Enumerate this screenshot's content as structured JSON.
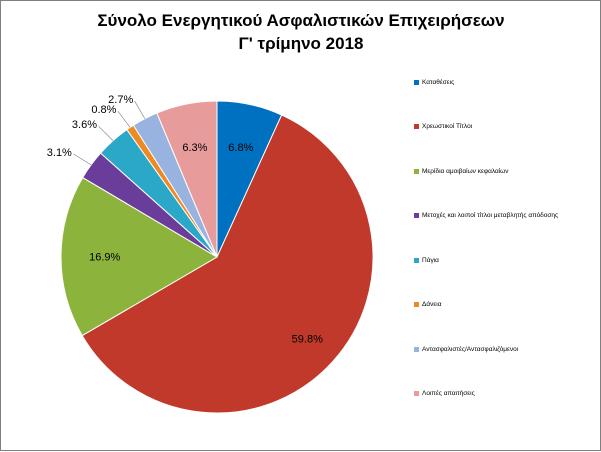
{
  "title_lines": [
    "Σύνολο Ενεργητικού Ασφαλιστικών Επιχειρήσεων",
    "Γ' τρίμηνο 2018"
  ],
  "chart_data": {
    "type": "pie",
    "title": "Σύνολο Ενεργητικού Ασφαλιστικών Επιχειρήσεων Γ' τρίμηνο 2018",
    "legend_position": "right",
    "categories": [
      "Καταθέσεις",
      "Χρεωστικοί Τίτλοι",
      "Μερίδια αμοιβαίων κεφαλαίων",
      "Μετοχές και λοιποί τίτλοι μεταβλητής απόδοσης",
      "Πάγια",
      "Δάνεια",
      "Αντασφαλιστές/Αντασφαλιζόμενοι",
      "Λοιπές απαιτήσεις"
    ],
    "values": [
      6.8,
      59.8,
      16.9,
      3.1,
      3.6,
      0.8,
      2.7,
      6.3
    ],
    "labels": [
      "6.8%",
      "59.8%",
      "16.9%",
      "3.1%",
      "3.6%",
      "0.8%",
      "2.7%",
      "6.3%"
    ],
    "colors": [
      "#0070c0",
      "#c0392b",
      "#8cb33b",
      "#6a3d9a",
      "#2ba8c7",
      "#ee8a24",
      "#99b3e0",
      "#e89b9b"
    ]
  }
}
